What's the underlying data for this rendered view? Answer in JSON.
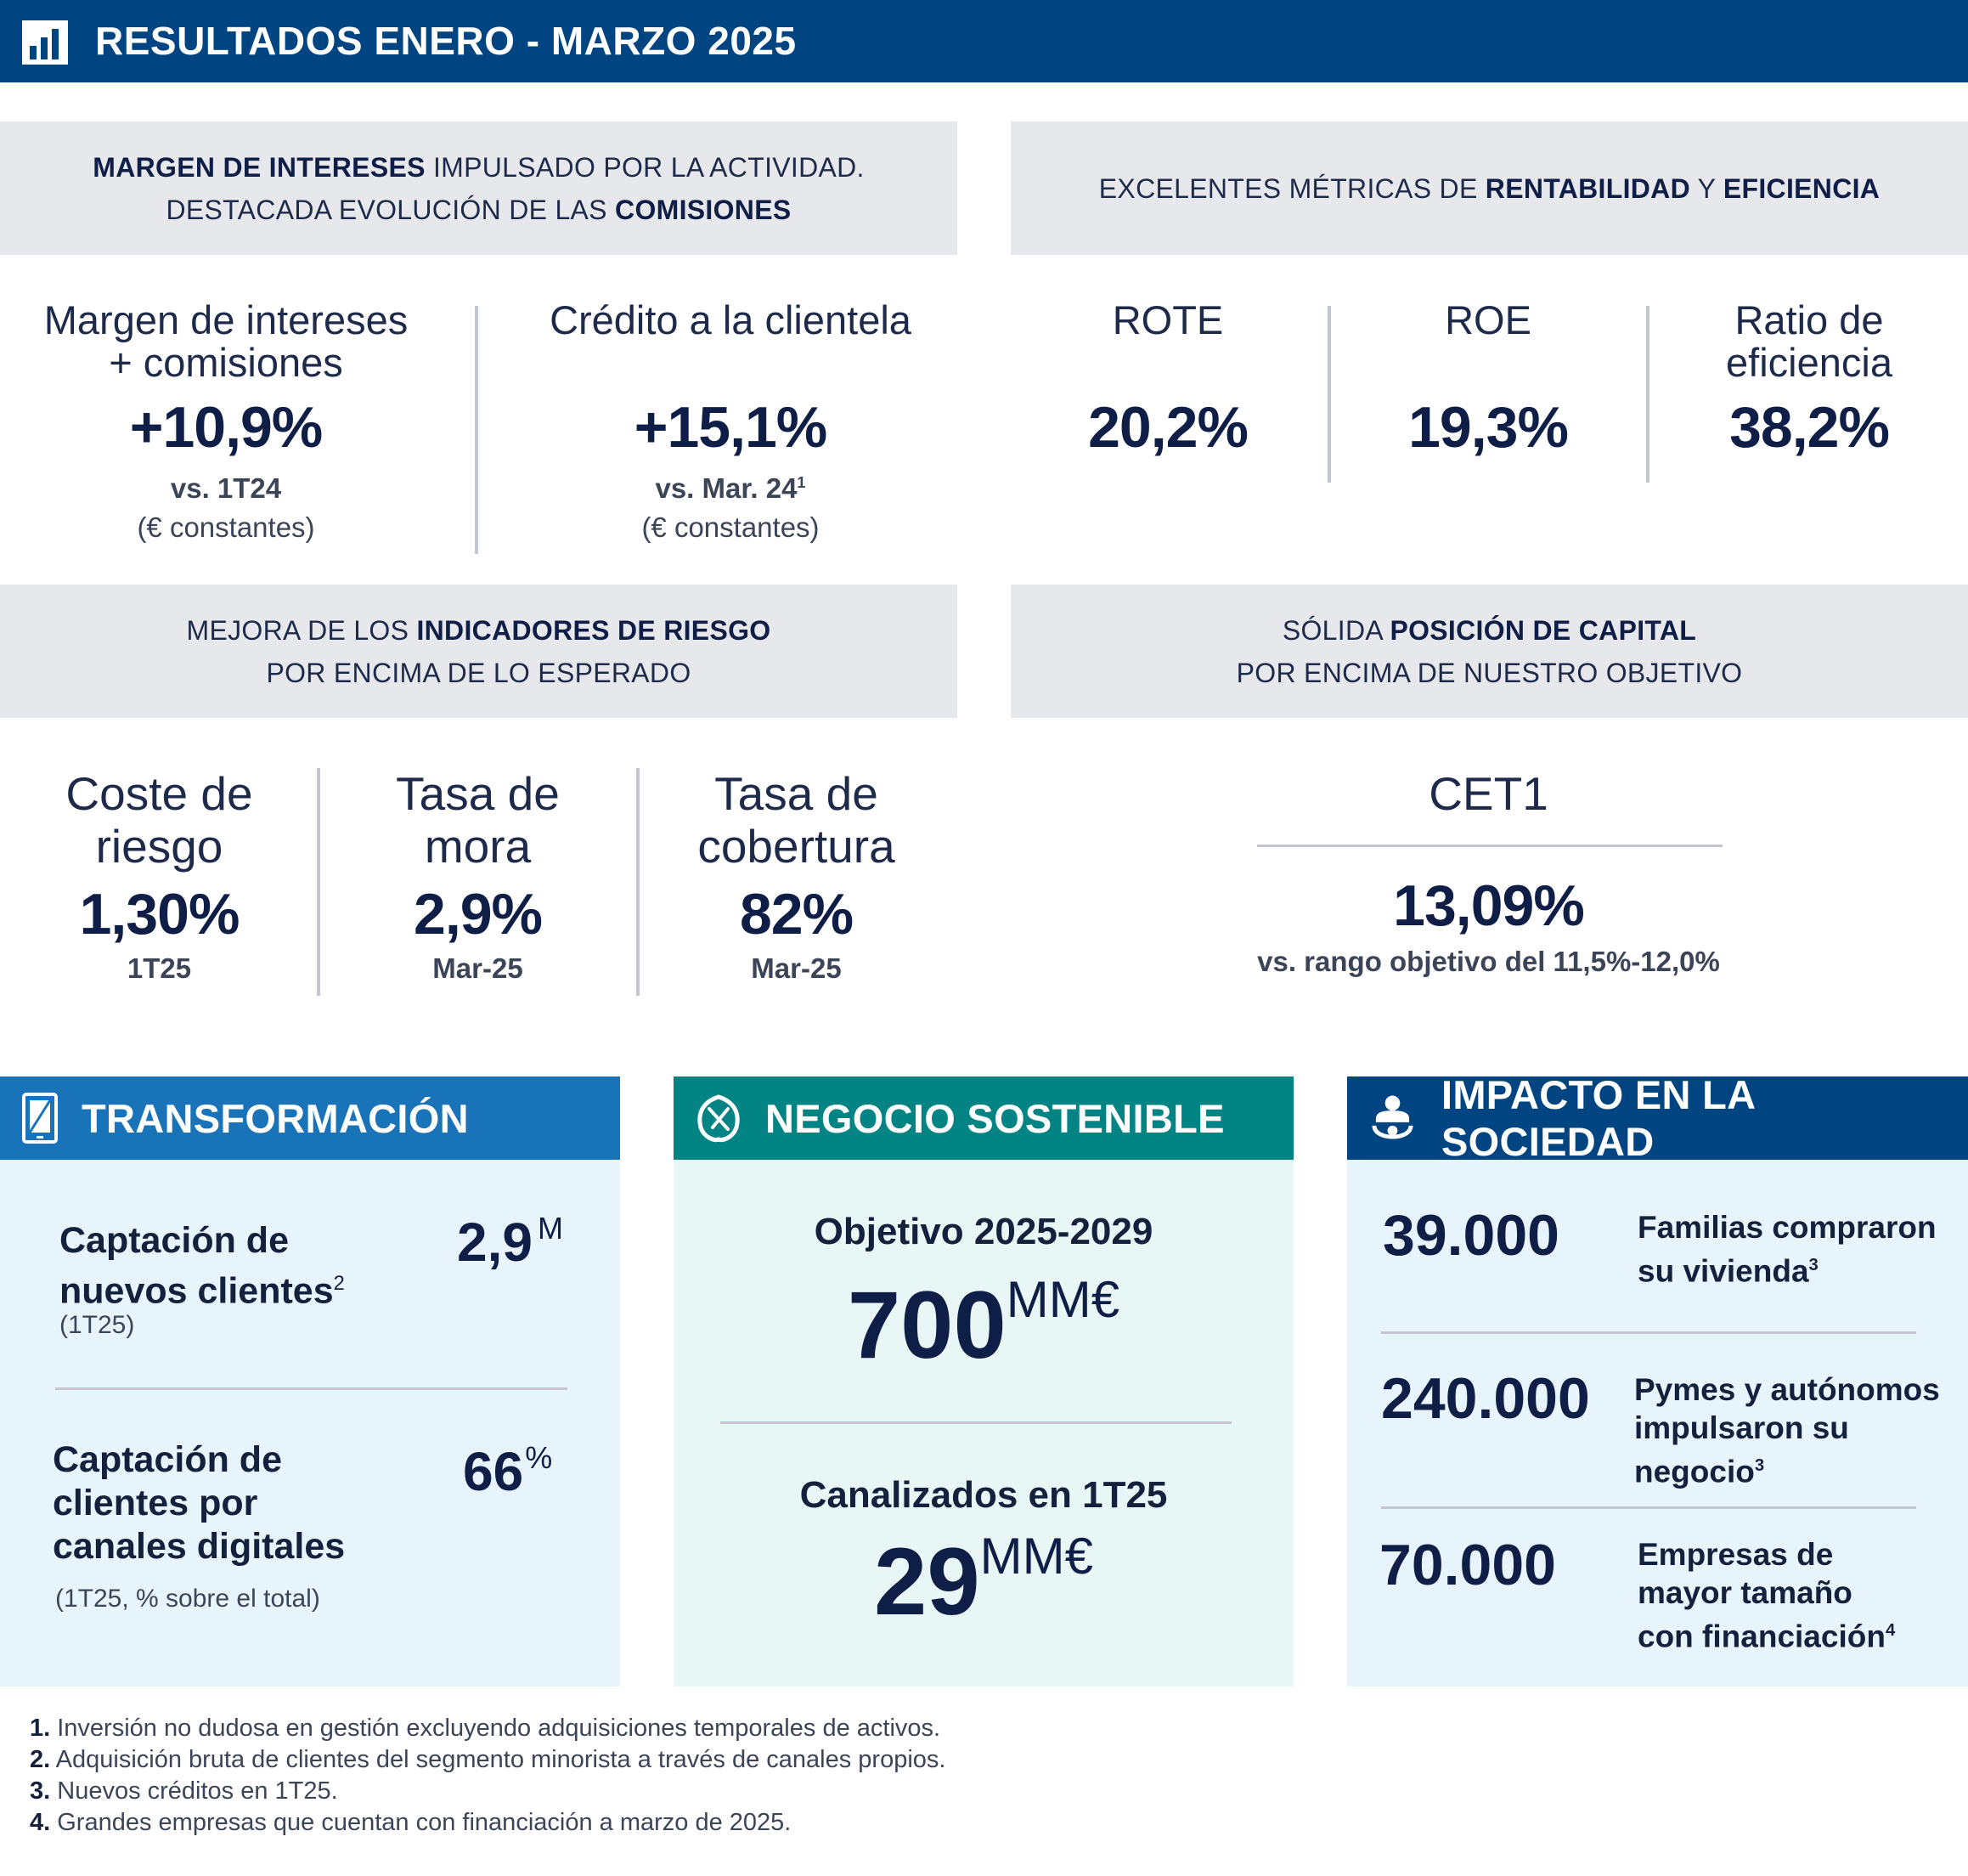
{
  "header": {
    "title": "RESULTADOS ENERO - MARZO 2025",
    "icon": "bar-chart-icon"
  },
  "banner_margin": {
    "line1_bold": "MARGEN DE INTERESES",
    "line1_rest": " IMPULSADO POR LA ACTIVIDAD.",
    "line2_prefix": "DESTACADA EVOLUCIÓN DE LAS ",
    "line2_bold": "COMISIONES"
  },
  "banner_rentabilidad": {
    "prefix": "EXCELENTES MÉTRICAS DE ",
    "bold1": "RENTABILIDAD",
    "mid": " Y ",
    "bold2": "EFICIENCIA"
  },
  "kpi_margen": {
    "label1": "Margen de intereses",
    "label2": "+ comisiones",
    "value": "+10,9%",
    "sub": "vs. 1T24",
    "note": "(€ constantes)"
  },
  "kpi_credito": {
    "label": "Crédito a la clientela",
    "value": "+15,1%",
    "sub": "vs. Mar. 24",
    "sub_sup": "1",
    "note": "(€ constantes)"
  },
  "kpi_rote": {
    "label": "ROTE",
    "value": "20,2%"
  },
  "kpi_roe": {
    "label": "ROE",
    "value": "19,3%"
  },
  "kpi_eficiencia": {
    "label1": "Ratio de",
    "label2": "eficiencia",
    "value": "38,2%"
  },
  "banner_riesgo": {
    "line1_prefix": "MEJORA DE LOS ",
    "line1_bold": "INDICADORES DE RIESGO",
    "line2": "POR ENCIMA DE LO ESPERADO"
  },
  "banner_capital": {
    "line1_prefix": "SÓLIDA ",
    "line1_bold": "POSICIÓN DE CAPITAL",
    "line2": "POR ENCIMA DE NUESTRO OBJETIVO"
  },
  "kpi_coste": {
    "label1": "Coste de",
    "label2": "riesgo",
    "value": "1,30%",
    "sub": "1T25"
  },
  "kpi_mora": {
    "label1": "Tasa de",
    "label2": "mora",
    "value": "2,9%",
    "sub": "Mar-25"
  },
  "kpi_cobertura": {
    "label1": "Tasa de",
    "label2": "cobertura",
    "value": "82%",
    "sub": "Mar-25"
  },
  "kpi_cet1": {
    "label": "CET1",
    "value": "13,09%",
    "sub": "vs. rango objetivo del 11,5%-12,0%"
  },
  "transformacion": {
    "title": "TRANSFORMACIÓN",
    "icon": "smartphone-icon",
    "color": "#1973b8",
    "item1": {
      "label1": "Captación de",
      "label2": "nuevos clientes",
      "label_sup": "2",
      "note": "(1T25)",
      "value": "2,9",
      "unit": "M"
    },
    "item2": {
      "label1": "Captación de",
      "label2": "clientes por",
      "label3": "canales digitales",
      "note": "(1T25, % sobre el total)",
      "value": "66",
      "unit": "%"
    }
  },
  "sostenible": {
    "title": "NEGOCIO SOSTENIBLE",
    "icon": "leaf-icon",
    "color": "#028484",
    "item1": {
      "label": "Objetivo 2025-2029",
      "value": "700",
      "unit": "MM€"
    },
    "item2": {
      "label": "Canalizados en 1T25",
      "value": "29",
      "unit": "MM€"
    }
  },
  "sociedad": {
    "title": "IMPACTO EN LA SOCIEDAD",
    "icon": "people-icon",
    "color": "#004481",
    "item1": {
      "value": "39.000",
      "label1": "Familias compraron",
      "label2": "su vivienda",
      "sup": "3"
    },
    "item2": {
      "value": "240.000",
      "label1": "Pymes y autónomos",
      "label2": "impulsaron su",
      "label3": "negocio",
      "sup": "3"
    },
    "item3": {
      "value": "70.000",
      "label1": "Empresas de",
      "label2": "mayor tamaño",
      "label3": "con financiación",
      "sup": "4"
    }
  },
  "footnotes": [
    {
      "num": "1.",
      "text": " Inversión no dudosa en gestión excluyendo adquisiciones temporales de activos."
    },
    {
      "num": "2.",
      "text": " Adquisición bruta de clientes del segmento minorista a través de canales propios."
    },
    {
      "num": "3.",
      "text": " Nuevos créditos en 1T25."
    },
    {
      "num": "4.",
      "text": " Grandes empresas que cuentan con financiación a marzo de 2025."
    }
  ]
}
